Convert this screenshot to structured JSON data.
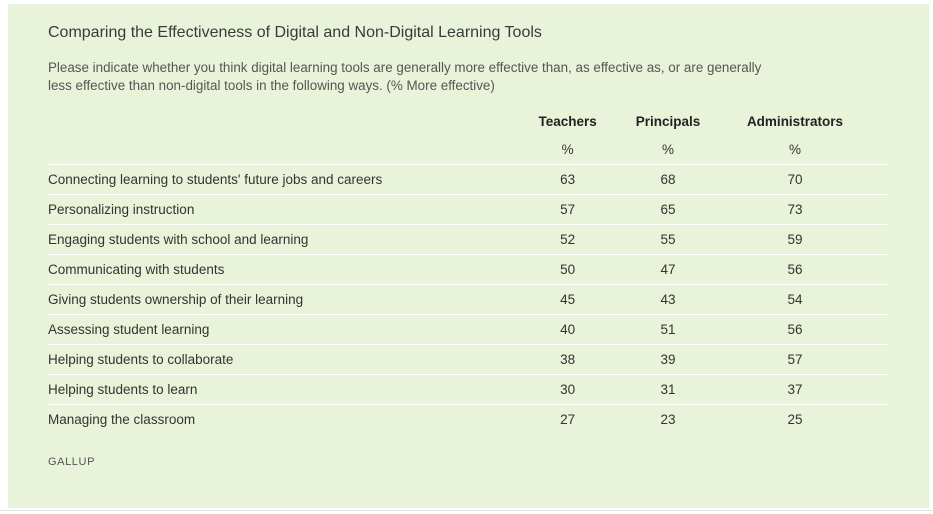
{
  "chart_data": {
    "type": "table",
    "title": "Comparing the Effectiveness of Digital and Non-Digital Learning Tools",
    "subtitle": "Please indicate whether you think digital learning tools are generally more effective than, as effective as, or are generally less effective than non-digital tools in the following ways. (% More effective)",
    "columns": [
      "Teachers",
      "Principals",
      "Administrators"
    ],
    "units": [
      "%",
      "%",
      "%"
    ],
    "rows": [
      {
        "label": "Connecting learning to students' future jobs and careers",
        "values": [
          63,
          68,
          70
        ]
      },
      {
        "label": "Personalizing instruction",
        "values": [
          57,
          65,
          73
        ]
      },
      {
        "label": "Engaging students with school and learning",
        "values": [
          52,
          55,
          59
        ]
      },
      {
        "label": "Communicating with students",
        "values": [
          50,
          47,
          56
        ]
      },
      {
        "label": "Giving students ownership of their learning",
        "values": [
          45,
          43,
          54
        ]
      },
      {
        "label": "Assessing student learning",
        "values": [
          40,
          51,
          56
        ]
      },
      {
        "label": "Helping students to collaborate",
        "values": [
          38,
          39,
          57
        ]
      },
      {
        "label": "Helping students to learn",
        "values": [
          30,
          31,
          37
        ]
      },
      {
        "label": "Managing the classroom",
        "values": [
          27,
          23,
          25
        ]
      }
    ],
    "source": "GALLUP"
  },
  "colors": {
    "panel_background": "#e9f3da",
    "row_divider": "#ffffff"
  }
}
